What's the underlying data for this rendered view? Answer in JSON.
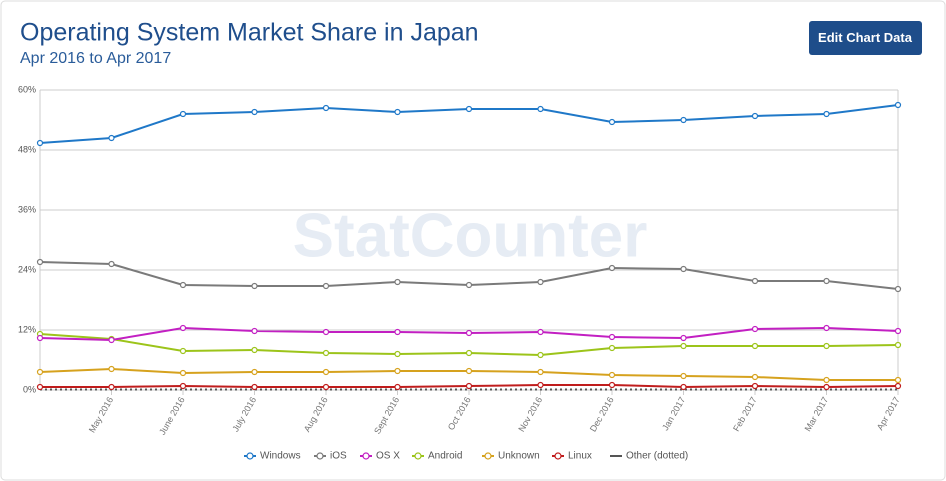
{
  "header": {
    "title": "Operating System Market Share in Japan",
    "subtitle": "Apr 2016 to Apr 2017",
    "button": "Edit Chart Data",
    "watermark": "StatCounter"
  },
  "chart_data": {
    "type": "line",
    "categories": [
      null,
      "May 2016",
      "June 2016",
      "July 2016",
      "Aug 2016",
      "Sept 2016",
      "Oct 2016",
      "Nov 2016",
      "Dec 2016",
      "Jan 2017",
      "Feb 2017",
      "Mar 2017",
      "Apr 2017"
    ],
    "ylim": [
      0,
      60
    ],
    "yticks": [
      {
        "value": 0,
        "label": "0%"
      },
      {
        "value": 12,
        "label": "12%"
      },
      {
        "value": 24,
        "label": "24%"
      },
      {
        "value": 36,
        "label": "36%"
      },
      {
        "value": 48,
        "label": "48%"
      },
      {
        "value": 60,
        "label": "60%"
      }
    ],
    "grid": true,
    "legend": "bottom",
    "series": [
      {
        "name": "Windows",
        "color": "#1f78c8",
        "values": [
          49.4,
          50.4,
          55.2,
          55.6,
          56.4,
          55.6,
          56.2,
          56.2,
          53.6,
          54,
          54.8,
          55.2,
          57
        ]
      },
      {
        "name": "iOS",
        "color": "#7a7a7a",
        "values": [
          25.6,
          25.2,
          21,
          20.8,
          20.8,
          21.6,
          21,
          21.6,
          24.4,
          24.2,
          21.8,
          21.8,
          20.2
        ]
      },
      {
        "name": "OS X",
        "color": "#c21fc2",
        "values": [
          10.4,
          10,
          12.4,
          11.8,
          11.6,
          11.6,
          11.4,
          11.6,
          10.6,
          10.4,
          12.2,
          12.4,
          11.8
        ]
      },
      {
        "name": "Android",
        "color": "#9cc41a",
        "values": [
          11.2,
          10.2,
          7.8,
          8,
          7.4,
          7.2,
          7.4,
          7,
          8.4,
          8.8,
          8.8,
          8.8,
          9
        ]
      },
      {
        "name": "Unknown",
        "color": "#d6a21e",
        "values": [
          3.6,
          4.2,
          3.4,
          3.6,
          3.6,
          3.8,
          3.8,
          3.6,
          3,
          2.8,
          2.6,
          2,
          2
        ]
      },
      {
        "name": "Linux",
        "color": "#c01c1c",
        "values": [
          0.6,
          0.6,
          0.8,
          0.6,
          0.6,
          0.6,
          0.8,
          1,
          1,
          0.6,
          0.8,
          0.6,
          0.8
        ]
      },
      {
        "name": "Other (dotted)",
        "color": "#555555",
        "dotted": true,
        "values": [
          0.1,
          0.1,
          0.1,
          0.1,
          0.1,
          0.1,
          0.1,
          0.1,
          0.1,
          0.1,
          0.1,
          0.1,
          0.1
        ]
      }
    ]
  }
}
